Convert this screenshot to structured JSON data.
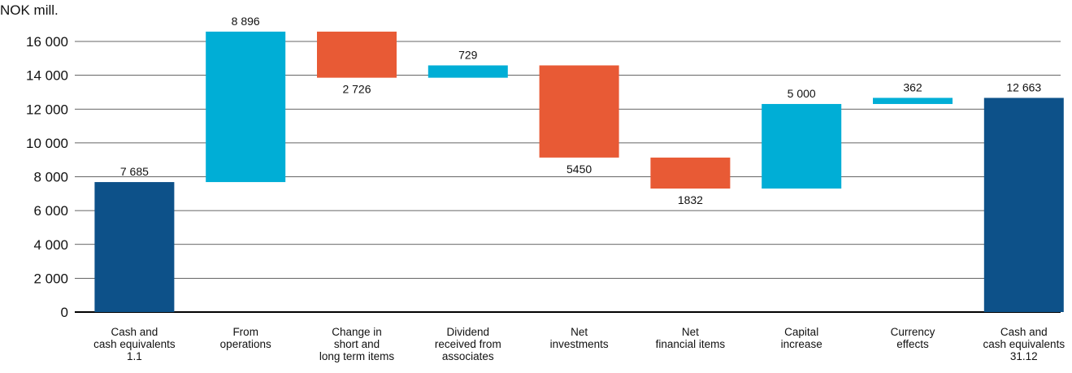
{
  "chart_data": {
    "type": "waterfall",
    "y_label": "NOK mill.",
    "categories": [
      [
        "Cash and",
        "cash equivalents",
        "1.1"
      ],
      [
        "From",
        "operations"
      ],
      [
        "Change in",
        "short and",
        "long term items"
      ],
      [
        "Dividend",
        "received from",
        "associates"
      ],
      [
        "Net",
        "investments"
      ],
      [
        "Net",
        "financial items"
      ],
      [
        "Capital",
        "increase"
      ],
      [
        "Currency",
        "effects"
      ],
      [
        "Cash and",
        "cash equivalents",
        "31.12"
      ]
    ],
    "values": [
      7685,
      8896,
      -2726,
      729,
      -5450,
      -1832,
      5000,
      362,
      12663
    ],
    "value_labels": [
      "7 685",
      "8 896",
      "2 726",
      "729",
      "5450",
      "1832",
      "5 000",
      "362",
      "12 663"
    ],
    "totals": [
      true,
      false,
      false,
      false,
      false,
      false,
      false,
      false,
      true
    ],
    "colors": {
      "total": "#0d5189",
      "increase": "#00aed6",
      "decrease": "#e85a35"
    },
    "ylim": [
      0,
      16000
    ],
    "yticks": [
      {
        "value": 0,
        "label": "0"
      },
      {
        "value": 2000,
        "label": "2 000"
      },
      {
        "value": 4000,
        "label": "4 000"
      },
      {
        "value": 6000,
        "label": "6 000"
      },
      {
        "value": 8000,
        "label": "8 000"
      },
      {
        "value": 10000,
        "label": "10 000"
      },
      {
        "value": 12000,
        "label": "12 000"
      },
      {
        "value": 14000,
        "label": "14 000"
      },
      {
        "value": 16000,
        "label": "16 000"
      }
    ],
    "grid": true
  }
}
